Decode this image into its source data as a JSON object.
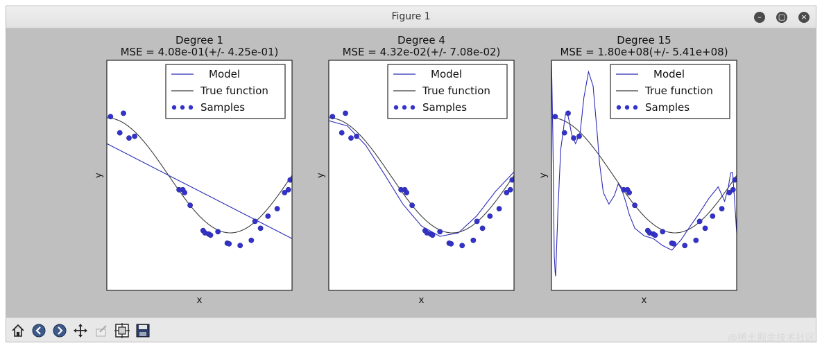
{
  "window": {
    "title": "Figure 1"
  },
  "window_controls": [
    {
      "name": "minimize-button",
      "glyph": "–"
    },
    {
      "name": "maximize-button",
      "glyph": "▢"
    },
    {
      "name": "close-button",
      "glyph": "×"
    }
  ],
  "toolbar": {
    "tools": [
      {
        "name": "home-icon"
      },
      {
        "name": "back-icon"
      },
      {
        "name": "forward-icon"
      },
      {
        "name": "pan-icon"
      },
      {
        "name": "zoom-icon"
      },
      {
        "name": "subplots-icon"
      },
      {
        "name": "save-icon"
      }
    ]
  },
  "watermark": "@稀土掘金技术社区",
  "colors": {
    "model": "#2b2bb8",
    "true_function": "#3a3a3a",
    "samples": "#3333cc"
  },
  "chart_data": [
    {
      "type": "scatter+line",
      "title": "Degree 1",
      "subtitle": "MSE = 4.08e-01(+/- 4.25e-01)",
      "xlabel": "x",
      "ylabel": "y",
      "xlim": [
        0,
        1
      ],
      "ylim": [
        -2,
        2
      ],
      "legend": [
        "Model",
        "True function",
        "Samples"
      ],
      "legend_position": "top-right",
      "model_type": "poly",
      "model_coeffs": [
        0.55,
        -1.65
      ],
      "samples": {
        "x": [
          0.02,
          0.07,
          0.09,
          0.12,
          0.15,
          0.39,
          0.41,
          0.42,
          0.45,
          0.52,
          0.53,
          0.55,
          0.56,
          0.6,
          0.65,
          0.66,
          0.72,
          0.78,
          0.8,
          0.83,
          0.87,
          0.92,
          0.96,
          0.98,
          0.99
        ],
        "y": [
          1.02,
          0.74,
          1.08,
          0.65,
          0.68,
          -0.25,
          -0.25,
          -0.3,
          -0.52,
          -0.96,
          -1.0,
          -1.02,
          -1.04,
          -0.98,
          -1.18,
          -1.19,
          -1.22,
          -1.13,
          -0.8,
          -0.92,
          -0.71,
          -0.58,
          -0.3,
          -0.25,
          -0.08
        ]
      }
    },
    {
      "type": "scatter+line",
      "title": "Degree 4",
      "subtitle": "MSE = 4.32e-02(+/- 7.08e-02)",
      "xlabel": "x",
      "ylabel": "y",
      "xlim": [
        0,
        1
      ],
      "ylim": [
        -2,
        2
      ],
      "legend": [
        "Model",
        "True function",
        "Samples"
      ],
      "legend_position": "top-right",
      "model_type": "interp",
      "model_x": [
        0,
        0.1,
        0.2,
        0.3,
        0.4,
        0.5,
        0.6,
        0.7,
        0.8,
        0.9,
        1
      ],
      "model_y": [
        0.95,
        0.86,
        0.52,
        0.02,
        -0.5,
        -0.88,
        -1.06,
        -1.0,
        -0.7,
        -0.28,
        0.06
      ],
      "samples": {
        "x": [
          0.02,
          0.07,
          0.09,
          0.12,
          0.15,
          0.39,
          0.41,
          0.42,
          0.45,
          0.52,
          0.53,
          0.55,
          0.56,
          0.6,
          0.65,
          0.66,
          0.72,
          0.78,
          0.8,
          0.83,
          0.87,
          0.92,
          0.96,
          0.98,
          0.99
        ],
        "y": [
          1.02,
          0.74,
          1.08,
          0.65,
          0.68,
          -0.25,
          -0.25,
          -0.3,
          -0.52,
          -0.96,
          -1.0,
          -1.02,
          -1.04,
          -0.98,
          -1.18,
          -1.19,
          -1.22,
          -1.13,
          -0.8,
          -0.92,
          -0.71,
          -0.58,
          -0.3,
          -0.25,
          -0.08
        ]
      }
    },
    {
      "type": "scatter+line",
      "title": "Degree 15",
      "subtitle": "MSE = 1.80e+08(+/- 5.41e+08)",
      "xlabel": "x",
      "ylabel": "y",
      "xlim": [
        0,
        1
      ],
      "ylim": [
        -2,
        2
      ],
      "legend": [
        "Model",
        "True function",
        "Samples"
      ],
      "legend_position": "top-right",
      "model_type": "interp",
      "model_x": [
        0,
        0.008,
        0.015,
        0.022,
        0.035,
        0.05,
        0.075,
        0.085,
        0.095,
        0.11,
        0.13,
        0.155,
        0.175,
        0.2,
        0.225,
        0.245,
        0.26,
        0.28,
        0.31,
        0.34,
        0.36,
        0.38,
        0.4,
        0.42,
        0.45,
        0.5,
        0.55,
        0.6,
        0.65,
        0.7,
        0.75,
        0.8,
        0.85,
        0.9,
        0.935,
        0.955,
        0.968,
        0.978,
        0.988,
        0.995,
        1
      ],
      "model_y": [
        2.0,
        0.6,
        -1.4,
        -1.8,
        -0.6,
        0.45,
        1.05,
        1.1,
        0.95,
        0.7,
        0.55,
        0.75,
        1.35,
        1.8,
        1.55,
        0.8,
        0.2,
        -0.3,
        -0.5,
        -0.35,
        -0.15,
        -0.25,
        -0.45,
        -0.68,
        -0.92,
        -1.05,
        -1.1,
        -1.22,
        -1.3,
        -1.12,
        -0.88,
        -0.65,
        -0.4,
        -0.2,
        -0.45,
        -0.2,
        0.05,
        0.05,
        -0.4,
        -0.75,
        -1.0
      ],
      "samples": {
        "x": [
          0.02,
          0.07,
          0.09,
          0.12,
          0.15,
          0.39,
          0.41,
          0.42,
          0.45,
          0.52,
          0.53,
          0.55,
          0.56,
          0.6,
          0.65,
          0.66,
          0.72,
          0.78,
          0.8,
          0.83,
          0.87,
          0.92,
          0.96,
          0.98,
          0.99
        ],
        "y": [
          1.02,
          0.74,
          1.08,
          0.65,
          0.68,
          -0.25,
          -0.25,
          -0.3,
          -0.52,
          -0.96,
          -1.0,
          -1.02,
          -1.04,
          -0.98,
          -1.18,
          -1.19,
          -1.22,
          -1.13,
          -0.8,
          -0.92,
          -0.71,
          -0.58,
          -0.3,
          -0.25,
          -0.08
        ]
      }
    }
  ]
}
